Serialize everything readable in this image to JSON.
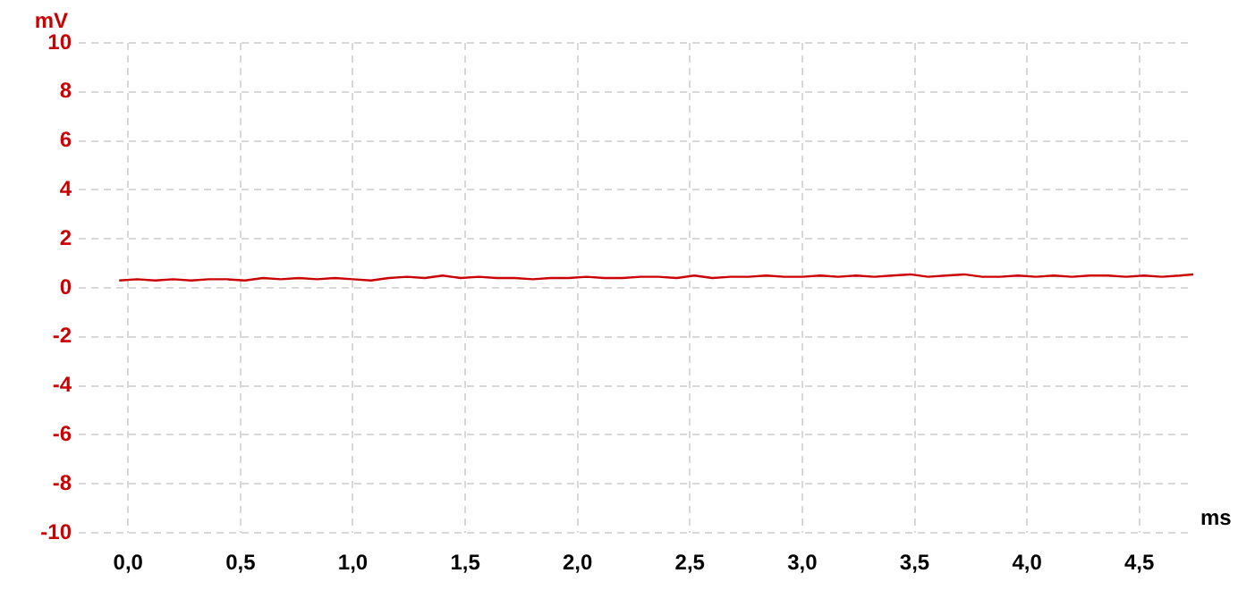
{
  "chart_data": {
    "type": "line",
    "xlabel": "ms",
    "ylabel": "mV",
    "x": [
      -0.04,
      0.04,
      0.12,
      0.2,
      0.28,
      0.36,
      0.44,
      0.52,
      0.6,
      0.68,
      0.76,
      0.84,
      0.92,
      1.0,
      1.08,
      1.16,
      1.24,
      1.32,
      1.4,
      1.48,
      1.56,
      1.64,
      1.72,
      1.8,
      1.88,
      1.96,
      2.04,
      2.12,
      2.2,
      2.28,
      2.36,
      2.44,
      2.52,
      2.6,
      2.68,
      2.76,
      2.84,
      2.92,
      3.0,
      3.08,
      3.16,
      3.24,
      3.32,
      3.4,
      3.48,
      3.56,
      3.64,
      3.72,
      3.8,
      3.88,
      3.96,
      4.04,
      4.12,
      4.2,
      4.28,
      4.36,
      4.44,
      4.52,
      4.6,
      4.68,
      4.74
    ],
    "series": [
      {
        "color": "#cc0000",
        "values": [
          0.3,
          0.35,
          0.3,
          0.35,
          0.3,
          0.35,
          0.35,
          0.3,
          0.4,
          0.35,
          0.4,
          0.35,
          0.4,
          0.35,
          0.3,
          0.4,
          0.45,
          0.4,
          0.5,
          0.4,
          0.45,
          0.4,
          0.4,
          0.35,
          0.4,
          0.4,
          0.45,
          0.4,
          0.4,
          0.45,
          0.45,
          0.4,
          0.5,
          0.4,
          0.45,
          0.45,
          0.5,
          0.45,
          0.45,
          0.5,
          0.45,
          0.5,
          0.45,
          0.5,
          0.55,
          0.45,
          0.5,
          0.55,
          0.45,
          0.45,
          0.5,
          0.45,
          0.5,
          0.45,
          0.5,
          0.5,
          0.45,
          0.5,
          0.45,
          0.5,
          0.55
        ]
      }
    ],
    "xlim": [
      -0.22,
      4.74
    ],
    "ylim": [
      -10,
      10
    ],
    "xticks": [
      {
        "value": 0,
        "label": "0,0"
      },
      {
        "value": 0.5,
        "label": "0,5"
      },
      {
        "value": 1,
        "label": "1,0"
      },
      {
        "value": 1.5,
        "label": "1,5"
      },
      {
        "value": 2,
        "label": "2,0"
      },
      {
        "value": 2.5,
        "label": "2,5"
      },
      {
        "value": 3,
        "label": "3,0"
      },
      {
        "value": 3.5,
        "label": "3,5"
      },
      {
        "value": 4,
        "label": "4,0"
      },
      {
        "value": 4.5,
        "label": "4,5"
      }
    ],
    "yticks": [
      -10,
      -8,
      -6,
      -4,
      -2,
      0,
      2,
      4,
      6,
      8,
      10
    ],
    "grid": true,
    "legend": false,
    "marker": "none",
    "line_style": "solid"
  }
}
